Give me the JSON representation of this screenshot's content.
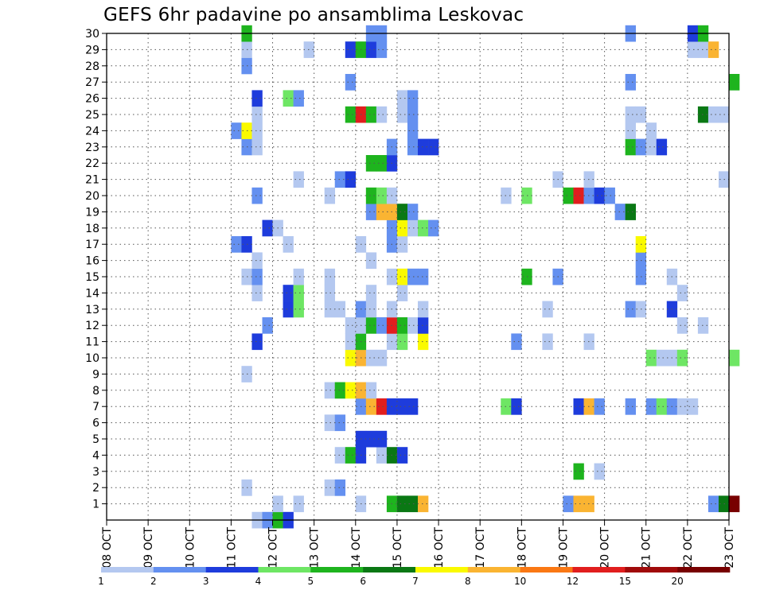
{
  "chart_data": {
    "type": "heatmap",
    "title": "GEFS 6hr padavine po ansamblima Leskovac",
    "x_tick_labels": [
      "08 OCT",
      "09 OCT",
      "10 OCT",
      "11 OCT",
      "12 OCT",
      "13 OCT",
      "14 OCT",
      "15 OCT",
      "16 OCT",
      "17 OCT",
      "18 OCT",
      "19 OCT",
      "20 OCT",
      "21 OCT",
      "22 OCT",
      "23 OCT"
    ],
    "y_tick_labels": [
      "1",
      "2",
      "3",
      "4",
      "5",
      "6",
      "7",
      "8",
      "9",
      "10",
      "11",
      "12",
      "13",
      "14",
      "15",
      "16",
      "17",
      "18",
      "19",
      "20",
      "21",
      "22",
      "23",
      "24",
      "25",
      "26",
      "27",
      "28",
      "29",
      "30"
    ],
    "x_range_days": [
      0,
      15
    ],
    "time_step_hours": 6,
    "y_range": [
      0,
      30
    ],
    "grid": "dotted",
    "legend": {
      "placement": "bottom",
      "labels": [
        "1",
        "2",
        "3",
        "4",
        "5",
        "6",
        "7",
        "8",
        "10",
        "12",
        "15",
        "20"
      ],
      "colors": [
        "#b4c8f0",
        "#6490f0",
        "#1e3cdc",
        "#6ee664",
        "#1eb41e",
        "#0a7814",
        "#fafa00",
        "#fab432",
        "#fa7814",
        "#e11e1e",
        "#a00a0a",
        "#780000"
      ]
    },
    "level_colors": {
      "1": "#b4c8f0",
      "2": "#6490f0",
      "3": "#1e3cdc",
      "4": "#6ee664",
      "5": "#1eb41e",
      "6": "#0a7814",
      "7": "#fafa00",
      "8": "#fab432",
      "9": "#fa7814",
      "10": "#e11e1e",
      "11": "#a00a0a",
      "12": "#780000"
    },
    "rows": [
      {
        "member": 0,
        "cells": [
          [
            14,
            1
          ],
          [
            15,
            2
          ],
          [
            16,
            5
          ],
          [
            17,
            3
          ]
        ]
      },
      {
        "member": 1,
        "cells": [
          [
            16,
            1
          ],
          [
            18,
            1
          ],
          [
            24,
            1
          ],
          [
            27,
            5
          ],
          [
            28,
            6
          ],
          [
            29,
            6
          ],
          [
            30,
            8
          ],
          [
            44,
            2
          ],
          [
            45,
            8
          ],
          [
            46,
            8
          ],
          [
            58,
            2
          ],
          [
            59,
            6
          ],
          [
            60,
            12
          ]
        ]
      },
      {
        "member": 2,
        "cells": [
          [
            13,
            1
          ],
          [
            21,
            1
          ],
          [
            22,
            2
          ]
        ]
      },
      {
        "member": 3,
        "cells": [
          [
            45,
            5
          ],
          [
            47,
            1
          ]
        ]
      },
      {
        "member": 4,
        "cells": [
          [
            22,
            1
          ],
          [
            23,
            5
          ],
          [
            24,
            3
          ],
          [
            26,
            1
          ],
          [
            27,
            6
          ],
          [
            28,
            3
          ]
        ]
      },
      {
        "member": 5,
        "cells": [
          [
            24,
            3
          ],
          [
            25,
            3
          ],
          [
            26,
            3
          ]
        ]
      },
      {
        "member": 6,
        "cells": [
          [
            21,
            1
          ],
          [
            22,
            2
          ]
        ]
      },
      {
        "member": 7,
        "cells": [
          [
            24,
            2
          ],
          [
            25,
            8
          ],
          [
            26,
            10
          ],
          [
            27,
            3
          ],
          [
            28,
            3
          ],
          [
            29,
            3
          ],
          [
            38,
            4
          ],
          [
            39,
            3
          ],
          [
            45,
            3
          ],
          [
            46,
            8
          ],
          [
            47,
            2
          ],
          [
            50,
            2
          ],
          [
            52,
            2
          ],
          [
            53,
            4
          ],
          [
            54,
            2
          ],
          [
            55,
            1
          ],
          [
            56,
            1
          ]
        ]
      },
      {
        "member": 8,
        "cells": [
          [
            21,
            1
          ],
          [
            22,
            5
          ],
          [
            23,
            7
          ],
          [
            24,
            8
          ],
          [
            25,
            1
          ]
        ]
      },
      {
        "member": 9,
        "cells": [
          [
            13,
            1
          ]
        ]
      },
      {
        "member": 10,
        "cells": [
          [
            23,
            7
          ],
          [
            24,
            8
          ],
          [
            25,
            1
          ],
          [
            26,
            1
          ],
          [
            52,
            4
          ],
          [
            53,
            1
          ],
          [
            54,
            1
          ],
          [
            55,
            4
          ],
          [
            60,
            4
          ]
        ]
      },
      {
        "member": 11,
        "cells": [
          [
            14,
            3
          ],
          [
            23,
            1
          ],
          [
            24,
            5
          ],
          [
            27,
            1
          ],
          [
            28,
            4
          ],
          [
            30,
            7
          ],
          [
            39,
            2
          ],
          [
            42,
            1
          ],
          [
            46,
            1
          ]
        ]
      },
      {
        "member": 12,
        "cells": [
          [
            15,
            2
          ],
          [
            23,
            1
          ],
          [
            24,
            1
          ],
          [
            25,
            5
          ],
          [
            26,
            2
          ],
          [
            27,
            10
          ],
          [
            28,
            5
          ],
          [
            29,
            1
          ],
          [
            30,
            3
          ],
          [
            55,
            1
          ],
          [
            57,
            1
          ]
        ]
      },
      {
        "member": 13,
        "cells": [
          [
            17,
            3
          ],
          [
            18,
            4
          ],
          [
            21,
            1
          ],
          [
            22,
            1
          ],
          [
            24,
            2
          ],
          [
            25,
            1
          ],
          [
            27,
            1
          ],
          [
            30,
            1
          ],
          [
            42,
            1
          ],
          [
            50,
            2
          ],
          [
            51,
            1
          ],
          [
            54,
            3
          ]
        ]
      },
      {
        "member": 14,
        "cells": [
          [
            14,
            1
          ],
          [
            17,
            3
          ],
          [
            18,
            4
          ],
          [
            21,
            1
          ],
          [
            25,
            1
          ],
          [
            28,
            1
          ],
          [
            55,
            1
          ]
        ]
      },
      {
        "member": 15,
        "cells": [
          [
            13,
            1
          ],
          [
            14,
            2
          ],
          [
            18,
            1
          ],
          [
            21,
            1
          ],
          [
            27,
            1
          ],
          [
            28,
            7
          ],
          [
            29,
            2
          ],
          [
            30,
            2
          ],
          [
            40,
            5
          ],
          [
            43,
            2
          ],
          [
            51,
            2
          ],
          [
            54,
            1
          ]
        ]
      },
      {
        "member": 16,
        "cells": [
          [
            14,
            1
          ],
          [
            25,
            1
          ],
          [
            51,
            2
          ]
        ]
      },
      {
        "member": 17,
        "cells": [
          [
            12,
            2
          ],
          [
            13,
            3
          ],
          [
            17,
            1
          ],
          [
            24,
            1
          ],
          [
            27,
            2
          ],
          [
            28,
            1
          ],
          [
            51,
            7
          ]
        ]
      },
      {
        "member": 18,
        "cells": [
          [
            15,
            3
          ],
          [
            16,
            1
          ],
          [
            27,
            2
          ],
          [
            28,
            7
          ],
          [
            29,
            1
          ],
          [
            30,
            4
          ],
          [
            31,
            2
          ]
        ]
      },
      {
        "member": 19,
        "cells": [
          [
            25,
            2
          ],
          [
            26,
            8
          ],
          [
            27,
            8
          ],
          [
            28,
            6
          ],
          [
            29,
            2
          ],
          [
            49,
            2
          ],
          [
            50,
            6
          ]
        ]
      },
      {
        "member": 20,
        "cells": [
          [
            14,
            2
          ],
          [
            21,
            1
          ],
          [
            25,
            5
          ],
          [
            26,
            4
          ],
          [
            27,
            1
          ],
          [
            38,
            1
          ],
          [
            40,
            4
          ],
          [
            44,
            5
          ],
          [
            45,
            10
          ],
          [
            46,
            2
          ],
          [
            47,
            3
          ],
          [
            48,
            2
          ]
        ]
      },
      {
        "member": 21,
        "cells": [
          [
            18,
            1
          ],
          [
            22,
            2
          ],
          [
            23,
            3
          ],
          [
            43,
            1
          ],
          [
            46,
            1
          ],
          [
            59,
            1
          ]
        ]
      },
      {
        "member": 22,
        "cells": [
          [
            25,
            5
          ],
          [
            26,
            5
          ],
          [
            27,
            3
          ]
        ]
      },
      {
        "member": 23,
        "cells": [
          [
            13,
            2
          ],
          [
            14,
            1
          ],
          [
            27,
            2
          ],
          [
            29,
            2
          ],
          [
            30,
            3
          ],
          [
            31,
            3
          ],
          [
            50,
            5
          ],
          [
            51,
            2
          ],
          [
            52,
            1
          ],
          [
            53,
            3
          ]
        ]
      },
      {
        "member": 24,
        "cells": [
          [
            12,
            2
          ],
          [
            13,
            7
          ],
          [
            14,
            1
          ],
          [
            29,
            2
          ],
          [
            50,
            1
          ],
          [
            52,
            1
          ]
        ]
      },
      {
        "member": 25,
        "cells": [
          [
            14,
            1
          ],
          [
            23,
            5
          ],
          [
            24,
            10
          ],
          [
            25,
            5
          ],
          [
            26,
            1
          ],
          [
            28,
            1
          ],
          [
            29,
            2
          ],
          [
            50,
            1
          ],
          [
            51,
            1
          ],
          [
            57,
            6
          ],
          [
            58,
            1
          ],
          [
            59,
            1
          ]
        ]
      },
      {
        "member": 26,
        "cells": [
          [
            14,
            3
          ],
          [
            17,
            4
          ],
          [
            18,
            2
          ],
          [
            28,
            1
          ],
          [
            29,
            2
          ]
        ]
      },
      {
        "member": 27,
        "cells": [
          [
            23,
            2
          ],
          [
            50,
            2
          ],
          [
            60,
            5
          ]
        ]
      },
      {
        "member": 28,
        "cells": [
          [
            13,
            2
          ]
        ]
      },
      {
        "member": 29,
        "cells": [
          [
            13,
            1
          ],
          [
            19,
            1
          ],
          [
            23,
            3
          ],
          [
            24,
            5
          ],
          [
            25,
            3
          ],
          [
            26,
            2
          ],
          [
            56,
            1
          ],
          [
            57,
            1
          ],
          [
            58,
            8
          ]
        ]
      },
      {
        "member": 30,
        "cells": [
          [
            13,
            5
          ],
          [
            25,
            2
          ],
          [
            26,
            2
          ],
          [
            50,
            2
          ],
          [
            56,
            3
          ],
          [
            57,
            5
          ]
        ]
      }
    ]
  }
}
